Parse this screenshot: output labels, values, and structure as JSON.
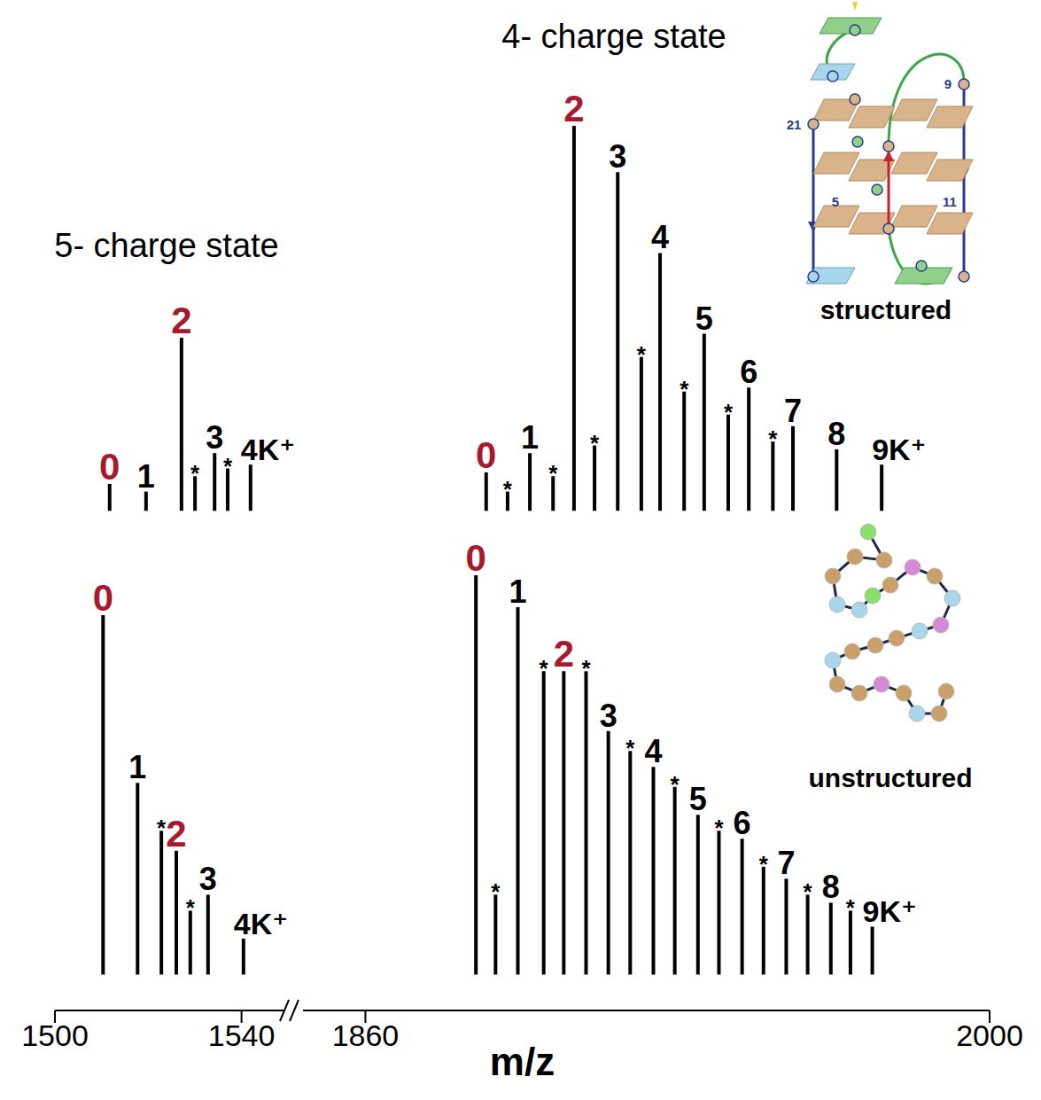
{
  "chart_data": [
    {
      "type": "bar",
      "color": "#000000",
      "ylim": [
        -2,
        112
      ],
      "tick_labels": false,
      "segments": [
        {
          "annotation": "5- charge state",
          "xlim": [
            1500,
            1549
          ],
          "x": [
            1511.8,
            1519.6,
            1527.2,
            1530.1,
            1534.3,
            1537.1,
            1542.0
          ],
          "values": [
            7,
            5,
            45,
            9,
            15,
            11,
            12
          ],
          "annotations": [
            {
              "text": "0",
              "color": "#a6192e"
            },
            {
              "text": "1",
              "color": "#000000"
            },
            {
              "text": "2",
              "color": "#a6192e"
            },
            {
              "text": "*",
              "color": "#000000"
            },
            {
              "text": "3",
              "color": "#000000"
            },
            {
              "text": "*",
              "color": "#000000"
            },
            {
              "text": "4K⁺",
              "color": "#000000"
            }
          ]
        },
        {
          "annotation": "4- charge state",
          "xlim": [
            1846,
            2000
          ],
          "x": [
            1887.0,
            1891.8,
            1896.8,
            1902.0,
            1906.7,
            1911.3,
            1916.5,
            1921.8,
            1926.0,
            1931.4,
            1935.9,
            1941.3,
            1945.9,
            1951.3,
            1955.8,
            1965.6,
            1975.7
          ],
          "values": [
            10,
            5,
            15,
            9,
            100,
            17,
            88,
            40,
            67,
            31,
            46,
            25,
            32,
            18,
            22,
            16,
            12
          ],
          "annotations": [
            {
              "text": "0",
              "color": "#a6192e"
            },
            {
              "text": "*",
              "color": "#000000"
            },
            {
              "text": "1",
              "color": "#000000"
            },
            {
              "text": "*",
              "color": "#000000"
            },
            {
              "text": "2",
              "color": "#a6192e"
            },
            {
              "text": "*",
              "color": "#000000"
            },
            {
              "text": "3",
              "color": "#000000"
            },
            {
              "text": "*",
              "color": "#000000"
            },
            {
              "text": "4",
              "color": "#000000"
            },
            {
              "text": "*",
              "color": "#000000"
            },
            {
              "text": "5",
              "color": "#000000"
            },
            {
              "text": "*",
              "color": "#000000"
            },
            {
              "text": "6",
              "color": "#000000"
            },
            {
              "text": "*",
              "color": "#000000"
            },
            {
              "text": "7",
              "color": "#000000"
            },
            {
              "text": "8",
              "color": "#000000"
            },
            {
              "text": "9K⁺",
              "color": "#000000"
            }
          ]
        }
      ],
      "inset": {
        "caption": "structured",
        "labels": [
          "9",
          "21",
          "5",
          "11"
        ]
      }
    },
    {
      "type": "bar",
      "color": "#000000",
      "ylim": [
        -9,
        112
      ],
      "tick_labels": "x",
      "xlabel": "m/z",
      "segments": [
        {
          "xlim": [
            1500,
            1549
          ],
          "xticks": [
            1500,
            1540
          ],
          "x": [
            1510.3,
            1517.7,
            1522.8,
            1526.0,
            1529.0,
            1532.8,
            1540.4
          ],
          "values": [
            90,
            48,
            36,
            31,
            16,
            20,
            9
          ],
          "annotations": [
            {
              "text": "0",
              "color": "#a6192e"
            },
            {
              "text": "1",
              "color": "#000000"
            },
            {
              "text": "*",
              "color": "#000000"
            },
            {
              "text": "2",
              "color": "#a6192e"
            },
            {
              "text": "*",
              "color": "#000000"
            },
            {
              "text": "3",
              "color": "#000000"
            },
            {
              "text": "4K⁺",
              "color": "#000000"
            }
          ]
        },
        {
          "xlim": [
            1846,
            2000
          ],
          "xticks": [
            1860,
            2000
          ],
          "x": [
            1884.8,
            1889.2,
            1894.2,
            1900.0,
            1904.5,
            1909.5,
            1914.5,
            1919.4,
            1924.6,
            1929.4,
            1934.6,
            1939.3,
            1944.5,
            1949.3,
            1954.4,
            1959.2,
            1964.4,
            1968.8,
            1973.7
          ],
          "values": [
            100,
            20,
            92,
            76,
            76,
            76,
            61,
            56,
            52,
            47,
            40,
            36,
            34,
            27,
            24,
            20,
            18,
            16,
            12
          ],
          "annotations": [
            {
              "text": "0",
              "color": "#a6192e"
            },
            {
              "text": "*",
              "color": "#000000"
            },
            {
              "text": "1",
              "color": "#000000"
            },
            {
              "text": "*",
              "color": "#000000"
            },
            {
              "text": "2",
              "color": "#a6192e"
            },
            {
              "text": "*",
              "color": "#000000"
            },
            {
              "text": "3",
              "color": "#000000"
            },
            {
              "text": "*",
              "color": "#000000"
            },
            {
              "text": "4",
              "color": "#000000"
            },
            {
              "text": "*",
              "color": "#000000"
            },
            {
              "text": "5",
              "color": "#000000"
            },
            {
              "text": "*",
              "color": "#000000"
            },
            {
              "text": "6",
              "color": "#000000"
            },
            {
              "text": "*",
              "color": "#000000"
            },
            {
              "text": "7",
              "color": "#000000"
            },
            {
              "text": "*",
              "color": "#000000"
            },
            {
              "text": "8",
              "color": "#000000"
            },
            {
              "text": "*",
              "color": "#000000"
            },
            {
              "text": "9K⁺",
              "color": "#000000"
            }
          ]
        }
      ],
      "inset": {
        "caption": "unstructured"
      }
    }
  ]
}
